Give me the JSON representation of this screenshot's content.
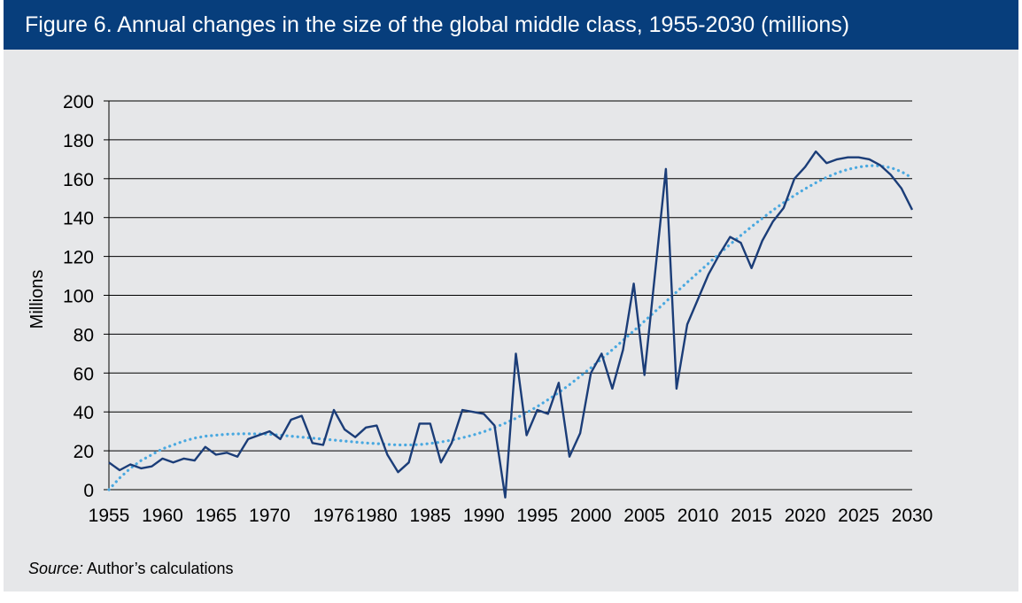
{
  "figure": {
    "title": "Figure 6. Annual changes in the size of the global middle class, 1955-2030 (millions)",
    "source_label": "Source:",
    "source_text": " Author’s calculations"
  },
  "colors": {
    "title_bar": "#073e7c",
    "background": "#e6e7e9",
    "series_line": "#1b3d78",
    "trend_line": "#49a8e0",
    "grid": "#000000"
  },
  "chart_data": {
    "type": "line",
    "title": "Annual changes in the size of the global middle class, 1955-2030 (millions)",
    "xlabel": "",
    "ylabel": "Millions",
    "xlim": [
      1955,
      2030
    ],
    "ylim": [
      0,
      200
    ],
    "yticks": [
      0,
      20,
      40,
      60,
      80,
      100,
      120,
      140,
      160,
      180,
      200
    ],
    "xticks": [
      1955,
      1960,
      1965,
      1970,
      1976,
      1980,
      1985,
      1990,
      1995,
      2000,
      2005,
      2010,
      2015,
      2020,
      2025,
      2030
    ],
    "grid": true,
    "legend": "none",
    "x": [
      1955,
      1956,
      1957,
      1958,
      1959,
      1960,
      1961,
      1962,
      1963,
      1964,
      1965,
      1966,
      1967,
      1968,
      1969,
      1970,
      1971,
      1972,
      1973,
      1974,
      1975,
      1976,
      1977,
      1978,
      1979,
      1980,
      1981,
      1982,
      1983,
      1984,
      1985,
      1986,
      1987,
      1988,
      1989,
      1990,
      1991,
      1992,
      1993,
      1994,
      1995,
      1996,
      1997,
      1998,
      1999,
      2000,
      2001,
      2002,
      2003,
      2004,
      2005,
      2006,
      2007,
      2008,
      2009,
      2010,
      2011,
      2012,
      2013,
      2014,
      2015,
      2016,
      2017,
      2018,
      2019,
      2020,
      2021,
      2022,
      2023,
      2024,
      2025,
      2026,
      2027,
      2028,
      2029,
      2030
    ],
    "series": [
      {
        "name": "Annual change",
        "values": [
          14,
          10,
          13,
          11,
          12,
          16,
          14,
          16,
          15,
          22,
          18,
          19,
          17,
          26,
          28,
          30,
          26,
          36,
          38,
          24,
          23,
          41,
          31,
          27,
          32,
          33,
          18,
          9,
          14,
          34,
          34,
          14,
          24,
          41,
          40,
          39,
          33,
          -4,
          70,
          28,
          41,
          39,
          55,
          17,
          29,
          60,
          70,
          52,
          72,
          106,
          59,
          112,
          165,
          52,
          85,
          98,
          111,
          121,
          130,
          127,
          114,
          128,
          138,
          145,
          160,
          166,
          174,
          168,
          170,
          171,
          171,
          170,
          167,
          162,
          155,
          144
        ]
      },
      {
        "name": "Trend",
        "style": "dotted",
        "values": [
          0,
          6,
          11,
          15,
          18,
          21,
          23,
          25,
          26.5,
          27.5,
          28,
          28.5,
          28.7,
          28.8,
          28.7,
          28.5,
          28,
          27.5,
          27,
          26.5,
          26,
          25.5,
          25,
          24.5,
          24,
          23.7,
          23.3,
          23,
          23,
          23.2,
          23.8,
          24.5,
          25.5,
          26.7,
          28.1,
          29.8,
          31.9,
          34.2,
          36.7,
          39.6,
          42.8,
          46.3,
          50,
          54,
          58.3,
          62.7,
          67.3,
          72,
          76.8,
          81.7,
          86.7,
          91.7,
          96.7,
          101.7,
          106.7,
          111.6,
          116.5,
          121.4,
          126.2,
          130.8,
          135.3,
          139.6,
          143.8,
          147.7,
          151.4,
          154.8,
          157.9,
          160.7,
          163,
          164.8,
          166,
          166.7,
          166.6,
          165.7,
          163.6,
          160.4
        ]
      }
    ]
  }
}
